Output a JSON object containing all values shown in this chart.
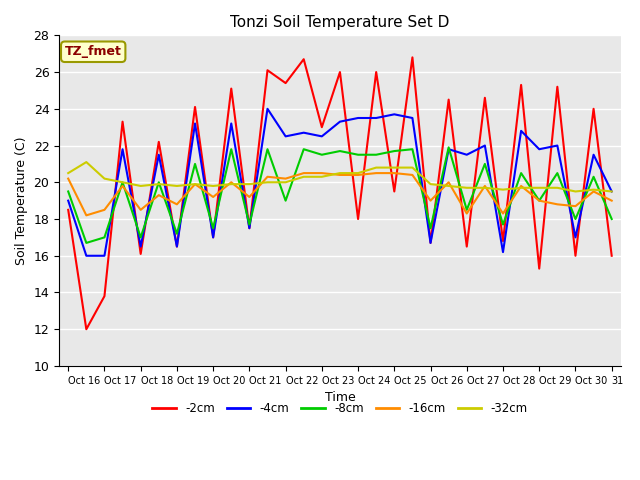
{
  "title": "Tonzi Soil Temperature Set D",
  "xlabel": "Time",
  "ylabel": "Soil Temperature (C)",
  "ylim": [
    10,
    28
  ],
  "yticks": [
    10,
    12,
    14,
    16,
    18,
    20,
    22,
    24,
    26,
    28
  ],
  "x_tick_labels": [
    "Oct 16",
    "Oct 17",
    "Oct 18",
    "Oct 19",
    "Oct 20",
    "Oct 21",
    "Oct 22",
    "Oct 23",
    "Oct 24",
    "Oct 25",
    "Oct 26",
    "Oct 27",
    "Oct 28",
    "Oct 29",
    "Oct 30",
    "Oct 31"
  ],
  "n_days": 16,
  "annotation": "TZ_fmet",
  "annotation_color": "#8B0000",
  "annotation_bg": "#FFFFCC",
  "series": {
    "-2cm": {
      "color": "#FF0000",
      "values": [
        18.5,
        12.0,
        13.8,
        23.3,
        16.1,
        22.2,
        16.5,
        24.1,
        17.0,
        25.1,
        17.5,
        26.1,
        25.4,
        26.7,
        23.0,
        26.0,
        18.0,
        26.0,
        19.5,
        26.8,
        16.7,
        24.5,
        16.5,
        24.6,
        16.8,
        25.3,
        15.3,
        25.2,
        16.0,
        24.0,
        16.0
      ]
    },
    "-4cm": {
      "color": "#0000FF",
      "values": [
        19.0,
        16.0,
        16.0,
        21.8,
        16.5,
        21.5,
        16.5,
        23.2,
        17.0,
        23.2,
        17.5,
        24.0,
        22.5,
        22.7,
        22.5,
        23.3,
        23.5,
        23.5,
        23.7,
        23.5,
        16.7,
        21.8,
        21.5,
        22.0,
        16.2,
        22.8,
        21.8,
        22.0,
        17.0,
        21.5,
        19.5
      ]
    },
    "-8cm": {
      "color": "#00CC00",
      "values": [
        19.5,
        16.7,
        17.0,
        20.0,
        17.0,
        20.0,
        17.2,
        21.0,
        17.5,
        21.8,
        17.7,
        21.8,
        19.0,
        21.8,
        21.5,
        21.7,
        21.5,
        21.5,
        21.7,
        21.8,
        17.5,
        21.9,
        18.5,
        21.0,
        17.7,
        20.5,
        19.0,
        20.5,
        18.0,
        20.3,
        18.0
      ]
    },
    "-16cm": {
      "color": "#FF8C00",
      "values": [
        20.2,
        18.2,
        18.5,
        19.8,
        18.5,
        19.3,
        18.8,
        19.9,
        19.2,
        20.0,
        19.2,
        20.3,
        20.2,
        20.5,
        20.5,
        20.4,
        20.4,
        20.5,
        20.5,
        20.4,
        19.0,
        20.0,
        18.3,
        19.8,
        18.3,
        19.8,
        19.0,
        18.8,
        18.7,
        19.5,
        19.0
      ]
    },
    "-32cm": {
      "color": "#CCCC00",
      "values": [
        20.5,
        21.1,
        20.2,
        20.0,
        19.8,
        19.9,
        19.8,
        19.9,
        19.8,
        19.9,
        19.9,
        20.0,
        20.0,
        20.3,
        20.3,
        20.5,
        20.5,
        20.8,
        20.8,
        20.8,
        19.9,
        19.8,
        19.7,
        19.7,
        19.6,
        19.7,
        19.7,
        19.7,
        19.5,
        19.6,
        19.5
      ]
    }
  },
  "legend_order": [
    "-2cm",
    "-4cm",
    "-8cm",
    "-16cm",
    "-32cm"
  ],
  "legend_colors": [
    "#FF0000",
    "#0000FF",
    "#00CC00",
    "#FF8C00",
    "#CCCC00"
  ]
}
